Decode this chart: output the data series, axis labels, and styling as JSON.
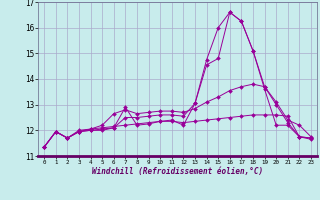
{
  "xlabel": "Windchill (Refroidissement éolien,°C)",
  "background_color": "#c8ecec",
  "grid_color": "#aaaacc",
  "line_color": "#990099",
  "spine_color": "#666688",
  "xlim": [
    -0.5,
    23.5
  ],
  "ylim": [
    11,
    17
  ],
  "yticks": [
    11,
    12,
    13,
    14,
    15,
    16,
    17
  ],
  "xticks": [
    0,
    1,
    2,
    3,
    4,
    5,
    6,
    7,
    8,
    9,
    10,
    11,
    12,
    13,
    14,
    15,
    16,
    17,
    18,
    19,
    20,
    21,
    22,
    23
  ],
  "series": [
    [
      11.35,
      11.95,
      11.7,
      11.95,
      12.0,
      12.0,
      12.1,
      12.9,
      12.2,
      12.25,
      12.35,
      12.4,
      12.2,
      13.05,
      14.75,
      16.0,
      16.6,
      16.25,
      15.1,
      13.7,
      13.0,
      12.3,
      11.75,
      11.7
    ],
    [
      11.35,
      11.95,
      11.7,
      11.95,
      12.0,
      12.05,
      12.1,
      12.5,
      12.5,
      12.55,
      12.6,
      12.6,
      12.55,
      13.05,
      14.55,
      14.8,
      16.6,
      16.25,
      15.1,
      13.6,
      12.2,
      12.2,
      11.75,
      11.7
    ],
    [
      11.35,
      11.95,
      11.7,
      12.0,
      12.05,
      12.2,
      12.65,
      12.8,
      12.65,
      12.7,
      12.75,
      12.75,
      12.7,
      12.85,
      13.1,
      13.3,
      13.55,
      13.7,
      13.8,
      13.7,
      13.1,
      12.4,
      12.2,
      11.75
    ],
    [
      11.35,
      11.95,
      11.7,
      11.95,
      12.05,
      12.1,
      12.15,
      12.2,
      12.25,
      12.3,
      12.35,
      12.35,
      12.3,
      12.35,
      12.4,
      12.45,
      12.5,
      12.55,
      12.6,
      12.6,
      12.6,
      12.55,
      11.75,
      11.65
    ]
  ]
}
